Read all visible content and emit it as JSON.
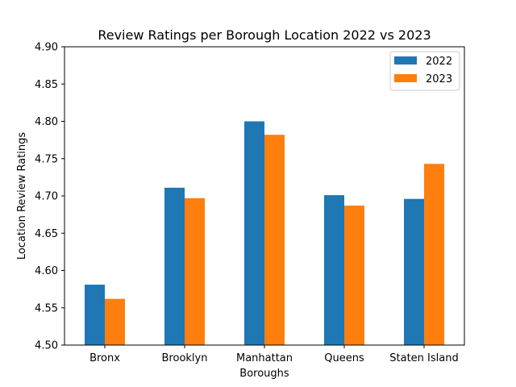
{
  "chart_data": {
    "type": "bar",
    "title": "Review Ratings per Borough Location 2022 vs 2023",
    "xlabel": "Boroughs",
    "ylabel": "Location Review Ratings",
    "categories": [
      "Bronx",
      "Brooklyn",
      "Manhattan",
      "Queens",
      "Staten Island"
    ],
    "series": [
      {
        "name": "2022",
        "color": "#1f77b4",
        "values": [
          4.581,
          4.711,
          4.8,
          4.701,
          4.696
        ]
      },
      {
        "name": "2023",
        "color": "#ff7f0e",
        "values": [
          4.562,
          4.697,
          4.782,
          4.687,
          4.743
        ]
      }
    ],
    "ylim": [
      4.5,
      4.9
    ],
    "yticks": [
      "4.50",
      "4.55",
      "4.60",
      "4.65",
      "4.70",
      "4.75",
      "4.80",
      "4.85",
      "4.90"
    ],
    "grid": false,
    "legend_position": "top-right"
  }
}
